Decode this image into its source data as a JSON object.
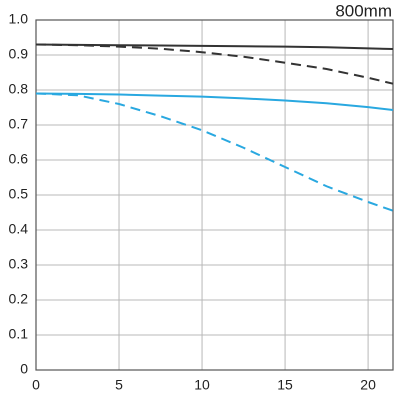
{
  "chart_data": {
    "type": "line",
    "title": "800mm",
    "x": [
      0,
      2.5,
      5,
      7.5,
      10,
      12.5,
      15,
      17.5,
      20,
      21.5
    ],
    "series": [
      {
        "color": "#333333",
        "dash": false,
        "values": [
          0.93,
          0.929,
          0.928,
          0.927,
          0.926,
          0.925,
          0.924,
          0.922,
          0.919,
          0.917
        ]
      },
      {
        "color": "#333333",
        "dash": true,
        "values": [
          0.93,
          0.928,
          0.924,
          0.918,
          0.908,
          0.895,
          0.878,
          0.86,
          0.835,
          0.818
        ]
      },
      {
        "color": "#29a8e0",
        "dash": false,
        "values": [
          0.79,
          0.789,
          0.787,
          0.784,
          0.781,
          0.776,
          0.77,
          0.762,
          0.751,
          0.743
        ]
      },
      {
        "color": "#29a8e0",
        "dash": true,
        "values": [
          0.79,
          0.785,
          0.76,
          0.725,
          0.685,
          0.635,
          0.58,
          0.525,
          0.48,
          0.455
        ]
      }
    ],
    "xlim": [
      0,
      21.5
    ],
    "xticks": [
      0,
      5,
      10,
      15,
      20
    ],
    "ylim": [
      0,
      1
    ],
    "yticks": [
      0,
      0.1,
      0.2,
      0.3,
      0.4,
      0.5,
      0.6,
      0.7,
      0.8,
      0.9,
      {
        "value": 1,
        "label": "1.0"
      }
    ],
    "grid": true
  }
}
